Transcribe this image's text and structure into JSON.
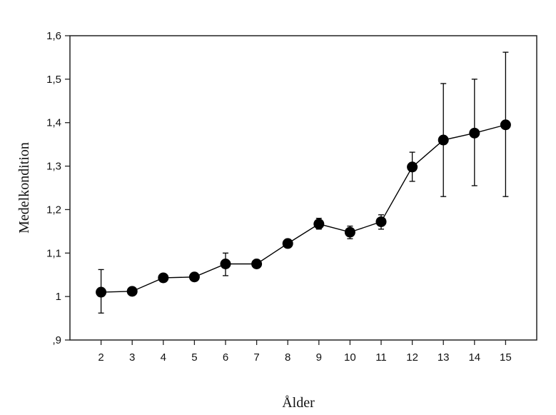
{
  "chart_data": {
    "type": "line",
    "title": "",
    "xlabel": "Ålder",
    "ylabel": "Medelkondition",
    "x": [
      2,
      3,
      4,
      5,
      6,
      7,
      8,
      9,
      10,
      11,
      12,
      13,
      14,
      15
    ],
    "x_tick_labels": [
      "2",
      "3",
      "4",
      "5",
      "6",
      "7",
      "8",
      "9",
      "10",
      "11",
      "12",
      "13",
      "14",
      "15"
    ],
    "xlim": [
      1,
      16
    ],
    "ylim": [
      0.9,
      1.6
    ],
    "y_ticks": [
      0.9,
      1.0,
      1.1,
      1.2,
      1.3,
      1.4,
      1.5,
      1.6
    ],
    "y_tick_labels": [
      ",9",
      "1",
      "1,1",
      "1,2",
      "1,3",
      "1,4",
      "1,5",
      "1,6"
    ],
    "grid": false,
    "series": [
      {
        "values": [
          1.01,
          1.012,
          1.043,
          1.045,
          1.075,
          1.075,
          1.122,
          1.167,
          1.148,
          1.172,
          1.298,
          1.36,
          1.376,
          1.395
        ],
        "error_upper": [
          1.062,
          1.012,
          1.043,
          1.045,
          1.1,
          1.075,
          1.122,
          1.18,
          1.162,
          1.188,
          1.332,
          1.49,
          1.5,
          1.562
        ],
        "error_lower": [
          0.962,
          1.012,
          1.043,
          1.045,
          1.048,
          1.075,
          1.122,
          1.155,
          1.133,
          1.155,
          1.265,
          1.23,
          1.255,
          1.23
        ],
        "color": "#000000"
      }
    ]
  }
}
